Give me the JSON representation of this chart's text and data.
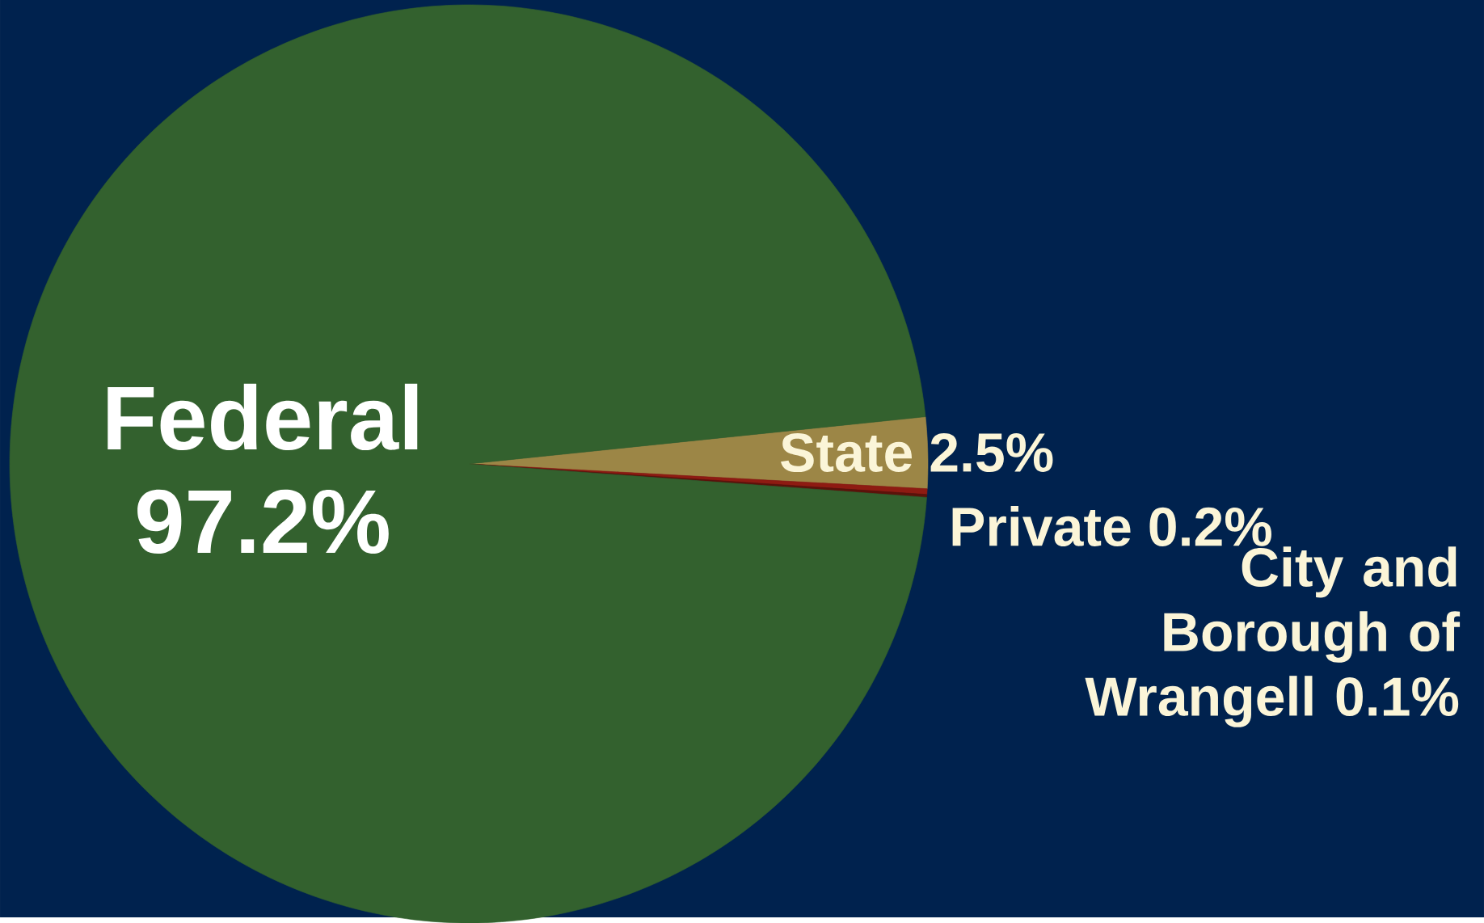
{
  "chart_data": {
    "type": "pie",
    "categories": [
      "State",
      "Private",
      "City and Borough of Wrangell",
      "Federal"
    ],
    "values": [
      2.5,
      0.2,
      0.1,
      97.2
    ],
    "value_labels": [
      "2.5%",
      "0.2%",
      "0.1%",
      "97.2%"
    ],
    "colors": [
      "#9c8646",
      "#8e1b12",
      "#5c120a",
      "#33612e"
    ],
    "data_labels": true
  }
}
